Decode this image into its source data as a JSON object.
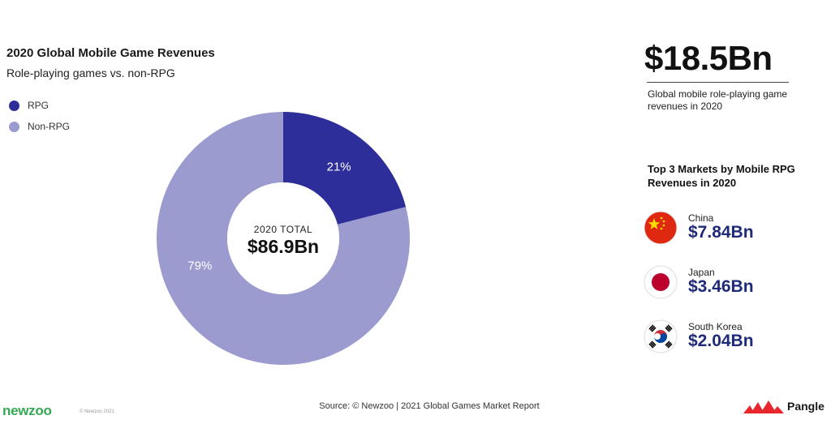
{
  "header": {
    "title": "2020 Global Mobile Game Revenues",
    "subtitle": "Role-playing games vs. non-RPG"
  },
  "legend": [
    {
      "label": "RPG",
      "color": "#2e2e9a"
    },
    {
      "label": "Non-RPG",
      "color": "#9b9bcf"
    }
  ],
  "chart_data": {
    "type": "pie",
    "title": "2020 Global Mobile Game Revenues",
    "subtitle": "Role-playing games vs. non-RPG",
    "categories": [
      "RPG",
      "Non-RPG"
    ],
    "values": [
      21,
      79
    ],
    "value_labels": [
      "21%",
      "79%"
    ],
    "colors": [
      "#2e2e9a",
      "#9b9bcf"
    ],
    "donut": true,
    "center_label": "2020 TOTAL",
    "center_value": "$86.9Bn",
    "legend_position": "top-left"
  },
  "stat": {
    "value": "$18.5Bn",
    "description": "Global mobile role-playing game revenues in 2020"
  },
  "top_markets": {
    "title": "Top 3 Markets by Mobile RPG Revenues in 2020",
    "items": [
      {
        "name": "China",
        "value": "$7.84Bn",
        "flag_icon": "china-flag-icon"
      },
      {
        "name": "Japan",
        "value": "$3.46Bn",
        "flag_icon": "japan-flag-icon"
      },
      {
        "name": "South Korea",
        "value": "$2.04Bn",
        "flag_icon": "south-korea-flag-icon"
      }
    ]
  },
  "footer": {
    "source": "Source: © Newzoo | 2021 Global Games Market Report",
    "newzoo_logo": "newzoo",
    "copyright": "© Newzoo 2021",
    "pangle_logo": "Pangle"
  }
}
